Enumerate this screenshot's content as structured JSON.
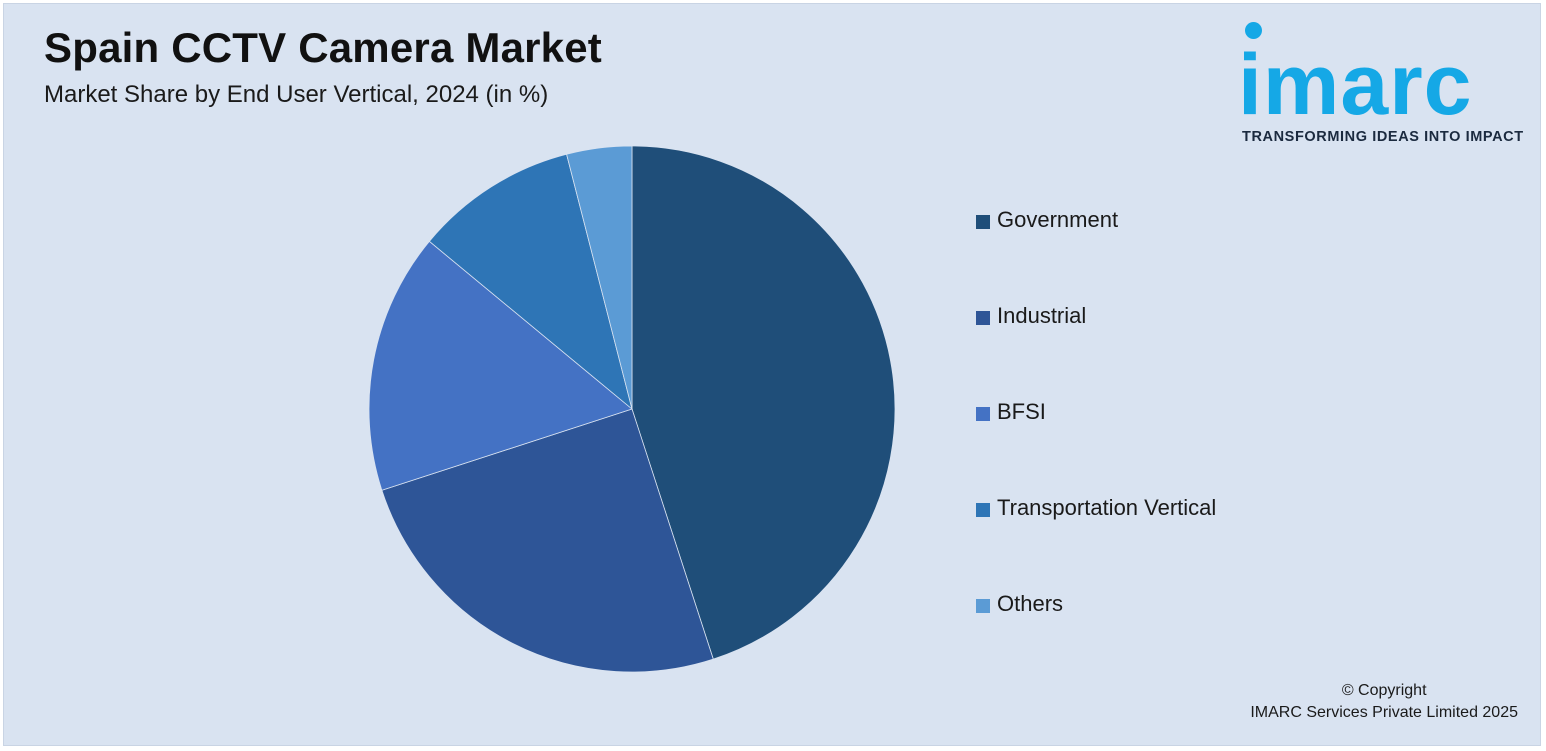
{
  "header": {
    "title": "Spain CCTV Camera Market",
    "subtitle": "Market Share by End User Vertical, 2024 (in %)"
  },
  "logo": {
    "word": "imarc",
    "tagline": "TRANSFORMING IDEAS INTO IMPACT"
  },
  "chart_data": {
    "type": "pie",
    "title": "Spain CCTV Camera Market",
    "subtitle": "Market Share by End User Vertical, 2024 (in %)",
    "categories": [
      "Government",
      "Industrial",
      "BFSI",
      "Transportation Vertical",
      "Others"
    ],
    "values": [
      45,
      25,
      16,
      10,
      4
    ],
    "colors": [
      "#1f4e79",
      "#2e5597",
      "#4472c4",
      "#2e75b6",
      "#5b9bd5"
    ],
    "legend_position": "right"
  },
  "footer": {
    "copyright_line1": "© Copyright",
    "copyright_line2": "IMARC Services Private Limited 2025"
  }
}
